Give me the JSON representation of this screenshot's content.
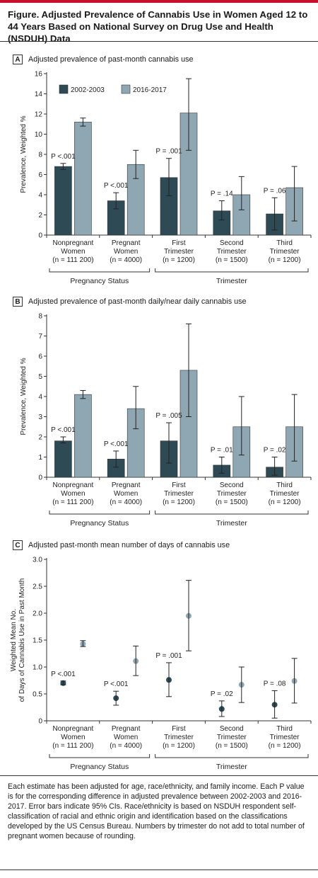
{
  "figure_title": "Figure. Adjusted Prevalence of Cannabis Use in Women Aged 12 to 44 Years Based on National Survey on Drug Use and Health (NSDUH) Data",
  "colors": {
    "s2002": "#2d4a55",
    "s2016": "#8fa7b3",
    "accent": "#c8102e"
  },
  "notes": "Each estimate has been adjusted for age, race/ethnicity, and family income. Each P value is for the corresponding difference in adjusted prevalence between 2002-2003 and 2016-2017. Error bars indicate 95% CIs. Race/ethnicity is based on NSDUH respondent self-classification of racial and ethnic origin and identification based on the classifications developed by the US Census Bureau. Numbers by trimester do not add to total number of pregnant women because of rounding.",
  "chart_data": [
    {
      "panel": "A",
      "type": "bar",
      "title": "Adjusted prevalence of past-month cannabis use",
      "ylabel": "Prevalence, Weighted %",
      "ylim": [
        0,
        16
      ],
      "yticks": [
        "0",
        "2",
        "4",
        "6",
        "8",
        "10",
        "12",
        "14",
        "16"
      ],
      "legend": {
        "placement": "top-left",
        "entries": [
          "2002-2003",
          "2016-2017"
        ]
      },
      "categories": [
        [
          "Nonpregnant",
          "Women",
          "(n = 111 200)"
        ],
        [
          "Pregnant",
          "Women",
          "(n = 4000)"
        ],
        [
          "First",
          "Trimester",
          "(n = 1200)"
        ],
        [
          "Second",
          "Trimester",
          "(n = 1500)"
        ],
        [
          "Third",
          "Trimester",
          "(n = 1200)"
        ]
      ],
      "groups": [
        {
          "label": "Pregnancy Status",
          "span": [
            0,
            1
          ]
        },
        {
          "label": "Trimester",
          "span": [
            2,
            4
          ]
        }
      ],
      "p_values": [
        "P <.001",
        "P <.001",
        "P = .001",
        "P = .14",
        "P = .06"
      ],
      "series": [
        {
          "name": "2002-2003",
          "values": [
            6.8,
            3.4,
            5.7,
            2.4,
            2.1
          ],
          "ci_low": [
            6.5,
            2.6,
            3.9,
            1.5,
            0.5
          ],
          "ci_high": [
            7.1,
            4.2,
            7.6,
            3.4,
            3.7
          ]
        },
        {
          "name": "2016-2017",
          "values": [
            11.2,
            7.0,
            12.1,
            4.0,
            4.7
          ],
          "ci_low": [
            10.8,
            5.6,
            8.4,
            2.5,
            1.4
          ],
          "ci_high": [
            11.6,
            8.4,
            15.5,
            5.8,
            6.8
          ]
        }
      ]
    },
    {
      "panel": "B",
      "type": "bar",
      "title": "Adjusted prevalence of past-month daily/near daily cannabis use",
      "ylabel": "Prevalence, Weighted %",
      "ylim": [
        0,
        8
      ],
      "yticks": [
        "0",
        "1",
        "2",
        "3",
        "4",
        "5",
        "6",
        "7",
        "8"
      ],
      "categories": [
        [
          "Nonpregnant",
          "Women",
          "(n = 111 200)"
        ],
        [
          "Pregnant",
          "Women",
          "(n = 4000)"
        ],
        [
          "First",
          "Trimester",
          "(n = 1200)"
        ],
        [
          "Second",
          "Trimester",
          "(n = 1500)"
        ],
        [
          "Third",
          "Trimester",
          "(n = 1200)"
        ]
      ],
      "groups": [
        {
          "label": "Pregnancy Status",
          "span": [
            0,
            1
          ]
        },
        {
          "label": "Trimester",
          "span": [
            2,
            4
          ]
        }
      ],
      "p_values": [
        "P <.001",
        "P <.001",
        "P = .005",
        "P = .01",
        "P = .02"
      ],
      "series": [
        {
          "name": "2002-2003",
          "values": [
            1.8,
            0.9,
            1.8,
            0.6,
            0.5
          ],
          "ci_low": [
            1.7,
            0.5,
            0.7,
            0.2,
            0.1
          ],
          "ci_high": [
            2.0,
            1.3,
            2.7,
            1.0,
            1.0
          ]
        },
        {
          "name": "2016-2017",
          "values": [
            4.1,
            3.4,
            5.3,
            2.5,
            2.5
          ],
          "ci_low": [
            3.9,
            2.4,
            3.0,
            1.1,
            0.8
          ],
          "ci_high": [
            4.3,
            4.5,
            7.6,
            4.0,
            4.1
          ]
        }
      ]
    },
    {
      "panel": "C",
      "type": "scatter",
      "title": "Adjusted past-month mean number of days of cannabis use",
      "ylabel": "Weighted Mean No. of Days of Cannabis Use in Past Month",
      "ylim": [
        0,
        3.0
      ],
      "yticks": [
        "0",
        "0.5",
        "1.0",
        "1.5",
        "2.0",
        "2.5",
        "3.0"
      ],
      "categories": [
        [
          "Nonpregnant",
          "Women",
          "(n = 111 200)"
        ],
        [
          "Pregnant",
          "Women",
          "(n = 4000)"
        ],
        [
          "First",
          "Trimester",
          "(n = 1200)"
        ],
        [
          "Second",
          "Trimester",
          "(n = 1500)"
        ],
        [
          "Third",
          "Trimester",
          "(n = 1200)"
        ]
      ],
      "groups": [
        {
          "label": "Pregnancy Status",
          "span": [
            0,
            1
          ]
        },
        {
          "label": "Trimester",
          "span": [
            2,
            4
          ]
        }
      ],
      "p_values": [
        "P <.001",
        "P <.001",
        "P = .001",
        "P = .02",
        "P = .08"
      ],
      "series": [
        {
          "name": "2002-2003",
          "values": [
            0.7,
            0.42,
            0.76,
            0.22,
            0.3
          ],
          "ci_low": [
            0.67,
            0.29,
            0.45,
            0.08,
            0.05
          ],
          "ci_high": [
            0.74,
            0.55,
            1.08,
            0.37,
            0.56
          ]
        },
        {
          "name": "2016-2017",
          "values": [
            1.43,
            1.11,
            1.95,
            0.67,
            0.74
          ],
          "ci_low": [
            1.38,
            0.84,
            1.3,
            0.34,
            0.33
          ],
          "ci_high": [
            1.49,
            1.39,
            2.61,
            1.0,
            1.16
          ]
        }
      ]
    }
  ]
}
